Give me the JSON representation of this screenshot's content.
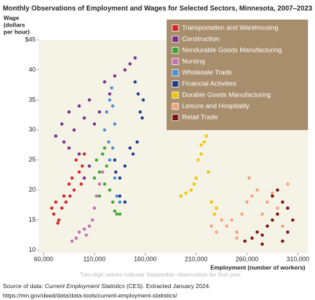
{
  "chart_data": {
    "type": "scatter",
    "title": "Monthly Observations of Employment and Wages for Selected Sectors, Minnesota, 2007–2023",
    "y_label": [
      "Wage",
      "(dollars",
      "per hour)"
    ],
    "x_label": "Employment (number of workers)",
    "annotation": "Two-digit values indicate September observation for that year.",
    "xlim": [
      55000,
      320000
    ],
    "ylim": [
      9.5,
      45
    ],
    "xticks": [
      {
        "value": 60000,
        "label": "60,000"
      },
      {
        "value": 110000,
        "label": "110,000"
      },
      {
        "value": 160000,
        "label": "160,000"
      },
      {
        "value": 210000,
        "label": "210,000"
      },
      {
        "value": 260000,
        "label": "260,000"
      },
      {
        "value": 310000,
        "label": "310,000"
      }
    ],
    "yticks": [
      10,
      15,
      20,
      25,
      30,
      35,
      40,
      {
        "value": 45,
        "label": "$45"
      }
    ],
    "legend": "upper right",
    "series": [
      {
        "name": "Transportation and Warehousing",
        "color": "#d7262b",
        "x": [
          68000,
          70000,
          72000,
          75000,
          78000,
          80000,
          85000,
          88000,
          90000,
          95000,
          98000,
          100000,
          92000,
          82000,
          74000,
          86000,
          97000
        ],
        "values": [
          17,
          16,
          18,
          15,
          17,
          19,
          21,
          22,
          20,
          23,
          24,
          26,
          25,
          18,
          14.5,
          19,
          21
        ]
      },
      {
        "name": "Construction",
        "color": "#7b2d8e",
        "x": [
          72000,
          78000,
          80000,
          85000,
          90000,
          95000,
          100000,
          105000,
          110000,
          115000,
          120000,
          125000,
          130000,
          140000,
          145000,
          150000,
          85000,
          95000,
          100000,
          105000
        ],
        "values": [
          29,
          31,
          28,
          33,
          30,
          34,
          32,
          35,
          31,
          33,
          38,
          36,
          39,
          40,
          41,
          42,
          27,
          26,
          22,
          24
        ]
      },
      {
        "name": "Nondurable Goods Manufacturing",
        "color": "#3fa535",
        "x": [
          110000,
          112000,
          115000,
          118000,
          120000,
          122000,
          125000,
          128000,
          130000,
          132000,
          135000,
          120000,
          115000
        ],
        "values": [
          22,
          25,
          23,
          26,
          27,
          24,
          20,
          18,
          16.5,
          16,
          16,
          21,
          19
        ]
      },
      {
        "name": "Nursing",
        "color": "#c36fb3",
        "x": [
          88000,
          92000,
          95000,
          100000,
          105000,
          110000,
          112000,
          115000,
          118000,
          108000,
          102000
        ],
        "values": [
          11.5,
          12,
          13,
          13.5,
          14,
          17,
          19,
          21,
          23,
          15,
          12.5
        ]
      },
      {
        "name": "Wholesale Trade",
        "color": "#4a8fd4",
        "x": [
          120000,
          122000,
          125000,
          127000,
          128000,
          130000,
          128000,
          125000,
          130000,
          132000,
          135000,
          124000
        ],
        "values": [
          30,
          33,
          35,
          37,
          34,
          31,
          27,
          25,
          22,
          19,
          18,
          28
        ]
      },
      {
        "name": "Financial Activities",
        "color": "#1f3d8f",
        "x": [
          130000,
          135000,
          140000,
          145000,
          148000,
          152000,
          155000,
          158000,
          157000,
          153000,
          150000,
          135000,
          140000,
          131000
        ],
        "values": [
          25,
          22,
          24,
          27,
          26,
          28,
          33,
          35,
          32,
          36,
          38,
          19,
          18,
          23
        ]
      },
      {
        "name": "Durable Goods Manufacturing",
        "color": "#f2c500",
        "x": [
          195000,
          200000,
          205000,
          210000,
          212000,
          215000,
          218000,
          220000,
          222000,
          225000,
          230000,
          228000,
          208000,
          215000
        ],
        "values": [
          19,
          19.5,
          20,
          22,
          25,
          26,
          28,
          29,
          23,
          18,
          17,
          16,
          21,
          27.5
        ]
      },
      {
        "name": "Leisure and Hospitality",
        "color": "#f4a17a",
        "x": [
          225000,
          230000,
          240000,
          245000,
          250000,
          255000,
          260000,
          265000,
          270000,
          275000,
          280000,
          290000,
          295000,
          300000,
          235000,
          262000,
          250000,
          285000
        ],
        "values": [
          14,
          13,
          14,
          15,
          13,
          16,
          18,
          19,
          20,
          16,
          18,
          17,
          14,
          21,
          15,
          22,
          12,
          19.5
        ]
      },
      {
        "name": "Retail Trade",
        "color": "#7a1313",
        "x": [
          258000,
          265000,
          270000,
          275000,
          280000,
          285000,
          290000,
          295000,
          300000,
          305000,
          285000,
          300000,
          295000,
          275000,
          290000
        ],
        "values": [
          11.5,
          12,
          13,
          12.5,
          14,
          15,
          16,
          18,
          17,
          15,
          19,
          13,
          11.5,
          11,
          20
        ]
      }
    ]
  },
  "source": {
    "prefix": "Source of data: ",
    "name": "Current Employment Statistics",
    "suffix": " (CES).  Extracted January 2024.",
    "url": "https://mn.gov/deed/data/data-tools/current-employment-statistics/"
  }
}
